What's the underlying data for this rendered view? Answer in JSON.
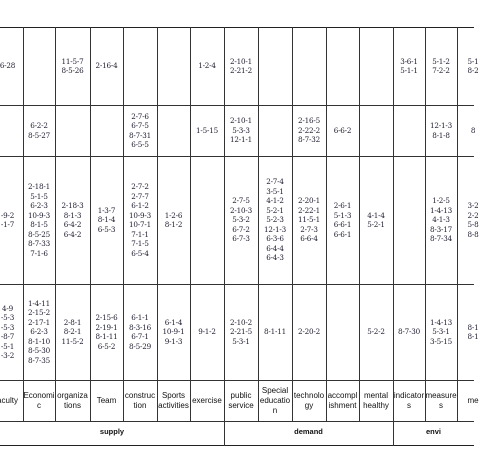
{
  "columns": [
    {
      "label": "aculty",
      "cells": [
        [
          "6-28"
        ],
        [],
        [
          "-9-2",
          "-1-7"
        ],
        [
          "4-9",
          "-5-3",
          "-5-3",
          "-8-7",
          "-5-1",
          "-3-2"
        ]
      ]
    },
    {
      "label": "Economi\nc",
      "cells": [
        [],
        [
          "6-2-2",
          "8-5-27"
        ],
        [
          "2-18-1",
          "5-1-5",
          "6-2-3",
          "10-9-3",
          "8-1-5",
          "8-5-25",
          "8-7-33",
          "7-1-6"
        ],
        [
          "1-4-11",
          "2-15-2",
          "2-17-1",
          "6-2-3",
          "8-1-10",
          "8-5-30",
          "8-7-35"
        ]
      ]
    },
    {
      "label": "organiza\ntions",
      "cells": [
        [
          "11-5-7",
          "8-5-26"
        ],
        [],
        [
          "2-18-3",
          "8-1-3",
          "6-4-2",
          "6-4-2"
        ],
        [
          "2-8-1",
          "8-2-1",
          "11-5-2"
        ]
      ]
    },
    {
      "label": "Team",
      "cells": [
        [
          "2-16-4"
        ],
        [],
        [
          "1-3-7",
          "8-1-4",
          "6-5-3"
        ],
        [
          "2-15-6",
          "2-19-1",
          "8-1-11",
          "6-5-2"
        ]
      ]
    },
    {
      "label": "construc\ntion",
      "cells": [
        [],
        [
          "2-7-6",
          "6-7-5",
          "8-7-31",
          "6-5-5"
        ],
        [
          "2-7-2",
          "2-7-7",
          "6-1-2",
          "10-9-3",
          "10-7-1",
          "7-1-1",
          "7-1-5",
          "6-5-4"
        ],
        [
          "6-1-1",
          "8-3-16",
          "6-7-1",
          "8-5-29"
        ]
      ]
    },
    {
      "label": "Sports\nactivities",
      "cells": [
        [],
        [],
        [
          "1-2-6",
          "8-1-2"
        ],
        [
          "6-1-4",
          "10-9-1",
          "9-1-3"
        ]
      ]
    },
    {
      "label": "exercise",
      "cells": [
        [
          "1-2-4"
        ],
        [
          "1-5-15"
        ],
        [],
        [
          "9-1-2"
        ]
      ]
    },
    {
      "label": "public\nservice",
      "cells": [
        [
          "2-10-1",
          "2-21-2"
        ],
        [
          "2-10-1",
          "5-3-3",
          "12-1-1"
        ],
        [
          "2-7-5",
          "2-10-3",
          "5-3-2",
          "6-7-2",
          "6-7-3"
        ],
        [
          "2-10-2",
          "2-21-5",
          "5-3-1"
        ]
      ]
    },
    {
      "label": "Special\neducatio\nn",
      "cells": [
        [],
        [],
        [
          "2-7-4",
          "3-5-1",
          "4-1-2",
          "5-2-1",
          "5-2-3",
          "12-1-3",
          "6-3-6",
          "6-4-4",
          "6-4-3"
        ],
        [
          "8-1-11"
        ]
      ]
    },
    {
      "label": "technolo\ngy",
      "cells": [
        [],
        [
          "2-16-5",
          "2-22-2",
          "8-7-32"
        ],
        [
          "2-20-1",
          "2-22-1",
          "11-5-1",
          "2-7-3",
          "6-6-4"
        ],
        [
          "2-20-2"
        ]
      ]
    },
    {
      "label": "accompl\nishment",
      "cells": [
        [],
        [
          "6-6-2"
        ],
        [
          "2-6-1",
          "5-1-3",
          "6-6-1",
          "6-6-1"
        ],
        []
      ]
    },
    {
      "label": "mental\nhealthy",
      "cells": [
        [],
        [],
        [
          "4-1-4",
          "5-2-1"
        ],
        [
          "5-2-2"
        ]
      ]
    },
    {
      "label": "indicator\ns",
      "cells": [
        [
          "3-6-1",
          "5-1-1"
        ],
        [],
        [],
        [
          "8-7-30"
        ]
      ]
    },
    {
      "label": "measure\ns",
      "cells": [
        [
          "5-1-2",
          "7-2-2"
        ],
        [
          "12-1-3",
          "8-1-8"
        ],
        [
          "1-2-5",
          "1-4-13",
          "4-1-3",
          "8-3-17",
          "8-7-34"
        ],
        [
          "1-4-13",
          "5-3-1",
          "3-5-15"
        ]
      ]
    },
    {
      "label": "me",
      "cells": [
        [
          "5-1",
          "8-2"
        ],
        [
          "8"
        ],
        [
          "3-2",
          "2-2",
          "5-8",
          "8-8"
        ],
        [
          "8-1",
          "8-1"
        ]
      ]
    }
  ],
  "groups": [
    {
      "label": "supply"
    },
    {
      "label": "demand"
    },
    {
      "label": "envi"
    }
  ]
}
